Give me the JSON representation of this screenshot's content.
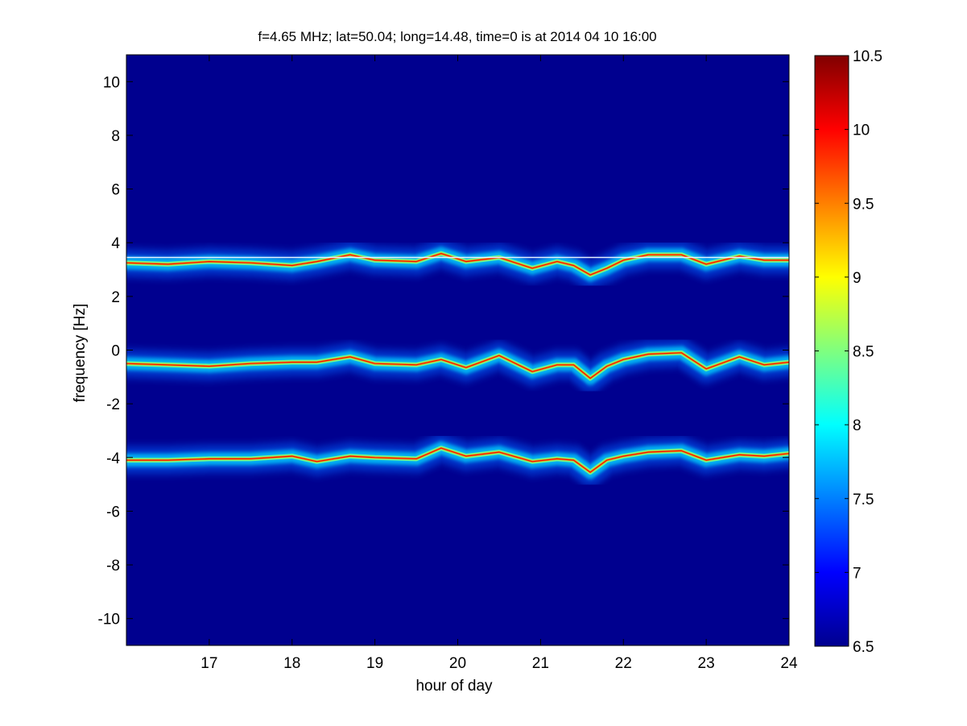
{
  "chart_data": {
    "type": "heatmap",
    "title": "f=4.65 MHz;  lat=50.04; long=14.48, time=0 is at 2014 04 10 16:00",
    "xlabel": "hour of day",
    "ylabel": "frequency [Hz]",
    "xlim": [
      16,
      24
    ],
    "ylim": [
      -11,
      11
    ],
    "xticks": [
      "17",
      "18",
      "19",
      "20",
      "21",
      "22",
      "23",
      "24"
    ],
    "yticks": [
      "10",
      "8",
      "6",
      "4",
      "2",
      "0",
      "-2",
      "-4",
      "-6",
      "-8",
      "-10"
    ],
    "colorbar": {
      "range": [
        6.5,
        10.5
      ],
      "ticks": [
        "10.5",
        "10",
        "9.5",
        "9",
        "8.5",
        "8",
        "7.5",
        "7",
        "6.5"
      ],
      "colormap": "jet"
    },
    "background_color": "#00008f",
    "reference_line_hz": 3.45,
    "traces": [
      {
        "name": "",
        "mean_hz": 3.3,
        "points": [
          [
            16.0,
            3.25
          ],
          [
            16.5,
            3.2
          ],
          [
            17.0,
            3.3
          ],
          [
            17.5,
            3.25
          ],
          [
            18.0,
            3.15
          ],
          [
            18.3,
            3.3
          ],
          [
            18.7,
            3.55
          ],
          [
            19.0,
            3.35
          ],
          [
            19.5,
            3.3
          ],
          [
            19.8,
            3.6
          ],
          [
            20.1,
            3.3
          ],
          [
            20.5,
            3.45
          ],
          [
            20.9,
            3.05
          ],
          [
            21.2,
            3.3
          ],
          [
            21.4,
            3.15
          ],
          [
            21.6,
            2.8
          ],
          [
            21.8,
            3.05
          ],
          [
            22.0,
            3.35
          ],
          [
            22.3,
            3.55
          ],
          [
            22.7,
            3.55
          ],
          [
            23.0,
            3.2
          ],
          [
            23.4,
            3.5
          ],
          [
            23.7,
            3.35
          ],
          [
            24.0,
            3.35
          ]
        ]
      },
      {
        "name": "",
        "mean_hz": -0.5,
        "points": [
          [
            16.0,
            -0.5
          ],
          [
            16.5,
            -0.55
          ],
          [
            17.0,
            -0.6
          ],
          [
            17.5,
            -0.5
          ],
          [
            18.0,
            -0.45
          ],
          [
            18.3,
            -0.45
          ],
          [
            18.7,
            -0.25
          ],
          [
            19.0,
            -0.5
          ],
          [
            19.5,
            -0.55
          ],
          [
            19.8,
            -0.35
          ],
          [
            20.1,
            -0.65
          ],
          [
            20.5,
            -0.2
          ],
          [
            20.9,
            -0.8
          ],
          [
            21.2,
            -0.55
          ],
          [
            21.4,
            -0.55
          ],
          [
            21.6,
            -1.05
          ],
          [
            21.8,
            -0.6
          ],
          [
            22.0,
            -0.35
          ],
          [
            22.3,
            -0.15
          ],
          [
            22.7,
            -0.1
          ],
          [
            23.0,
            -0.7
          ],
          [
            23.4,
            -0.25
          ],
          [
            23.7,
            -0.55
          ],
          [
            24.0,
            -0.45
          ]
        ]
      },
      {
        "name": "",
        "mean_hz": -4.0,
        "points": [
          [
            16.0,
            -4.1
          ],
          [
            16.5,
            -4.1
          ],
          [
            17.0,
            -4.05
          ],
          [
            17.5,
            -4.05
          ],
          [
            18.0,
            -3.95
          ],
          [
            18.3,
            -4.15
          ],
          [
            18.7,
            -3.95
          ],
          [
            19.0,
            -4.0
          ],
          [
            19.5,
            -4.05
          ],
          [
            19.8,
            -3.65
          ],
          [
            20.1,
            -3.95
          ],
          [
            20.5,
            -3.8
          ],
          [
            20.9,
            -4.15
          ],
          [
            21.2,
            -4.05
          ],
          [
            21.4,
            -4.1
          ],
          [
            21.6,
            -4.55
          ],
          [
            21.8,
            -4.1
          ],
          [
            22.0,
            -3.95
          ],
          [
            22.3,
            -3.8
          ],
          [
            22.7,
            -3.75
          ],
          [
            23.0,
            -4.1
          ],
          [
            23.4,
            -3.9
          ],
          [
            23.7,
            -3.95
          ],
          [
            24.0,
            -3.85
          ]
        ]
      }
    ]
  }
}
